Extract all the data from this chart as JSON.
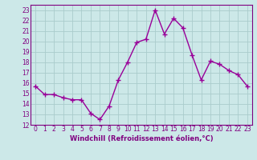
{
  "x": [
    0,
    1,
    2,
    3,
    4,
    5,
    6,
    7,
    8,
    9,
    10,
    11,
    12,
    13,
    14,
    15,
    16,
    17,
    18,
    19,
    20,
    21,
    22,
    23
  ],
  "y": [
    15.7,
    14.9,
    14.9,
    14.6,
    14.4,
    14.4,
    13.1,
    12.5,
    13.8,
    16.3,
    18.0,
    19.9,
    20.2,
    23.0,
    20.7,
    22.2,
    21.3,
    18.7,
    16.3,
    18.1,
    17.8,
    17.2,
    16.8,
    15.7
  ],
  "line_color": "#990099",
  "marker": "+",
  "marker_size": 4,
  "marker_linewidth": 1.0,
  "xlabel": "Windchill (Refroidissement éolien,°C)",
  "ylabel": "",
  "xlim": [
    -0.5,
    23.5
  ],
  "ylim": [
    12,
    23.5
  ],
  "yticks": [
    12,
    13,
    14,
    15,
    16,
    17,
    18,
    19,
    20,
    21,
    22,
    23
  ],
  "xticks": [
    0,
    1,
    2,
    3,
    4,
    5,
    6,
    7,
    8,
    9,
    10,
    11,
    12,
    13,
    14,
    15,
    16,
    17,
    18,
    19,
    20,
    21,
    22,
    23
  ],
  "background_color": "#cce8e8",
  "grid_color": "#aacccc",
  "tick_color": "#800080",
  "label_color": "#800080",
  "line_width": 1.0,
  "tick_fontsize": 5.5,
  "xlabel_fontsize": 6.0
}
